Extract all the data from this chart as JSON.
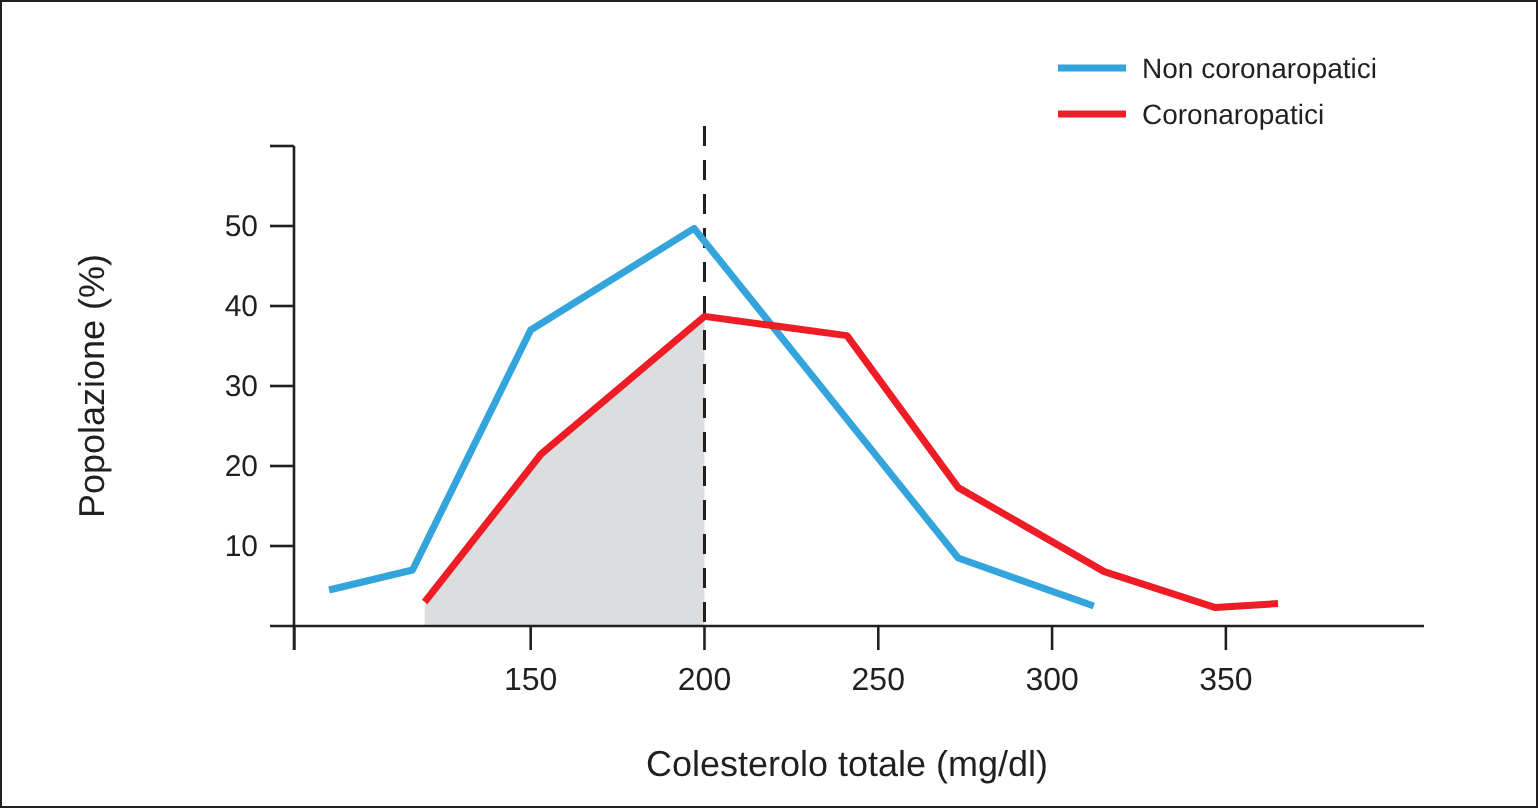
{
  "chart_data": {
    "type": "line",
    "xlabel": "Colesterolo totale (mg/dl)",
    "ylabel": "Popolazione (%)",
    "xlim": [
      75,
      407
    ],
    "xticks": [
      {
        "value": 82,
        "label": null
      },
      150,
      200,
      250,
      300,
      350
    ],
    "ylim": [
      0,
      60
    ],
    "yticks": [
      {
        "value": 10,
        "label": "10"
      },
      20,
      30,
      40,
      50,
      {
        "value": 60,
        "label": null
      }
    ],
    "series": [
      {
        "type": "area",
        "color": "#dcdddf",
        "x": [
          119.5,
          153,
          200
        ],
        "values": [
          3,
          21.5,
          38.7
        ]
      },
      {
        "name": "Non coronaropatici",
        "color": "#33a4dc",
        "x": [
          92,
          116,
          150,
          197,
          273,
          312
        ],
        "values": [
          4.5,
          7,
          37,
          49.7,
          8.5,
          2.5
        ]
      },
      {
        "name": "Coronaropatici",
        "color": "#ee1c25",
        "x": [
          119.5,
          153,
          200,
          241,
          273,
          315,
          347,
          365
        ],
        "values": [
          3,
          21.5,
          38.7,
          36.3,
          17.3,
          6.8,
          2.3,
          2.8
        ]
      }
    ],
    "ref_lines": [
      {
        "axis": "x",
        "value": 200,
        "color": "#231f20",
        "line_style": "dashed"
      }
    ],
    "grid": false,
    "legend": "top right",
    "marker": "none",
    "line_style": "solid"
  }
}
